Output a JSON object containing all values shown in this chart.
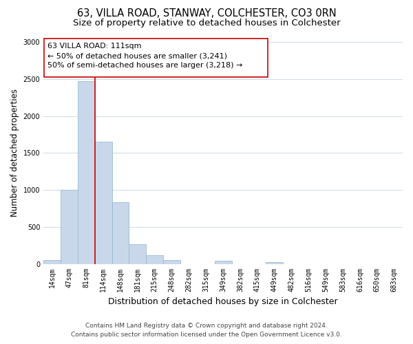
{
  "title1": "63, VILLA ROAD, STANWAY, COLCHESTER, CO3 0RN",
  "title2": "Size of property relative to detached houses in Colchester",
  "xlabel": "Distribution of detached houses by size in Colchester",
  "ylabel": "Number of detached properties",
  "bar_labels": [
    "14sqm",
    "47sqm",
    "81sqm",
    "114sqm",
    "148sqm",
    "181sqm",
    "215sqm",
    "248sqm",
    "282sqm",
    "315sqm",
    "349sqm",
    "382sqm",
    "415sqm",
    "449sqm",
    "482sqm",
    "516sqm",
    "549sqm",
    "583sqm",
    "616sqm",
    "650sqm",
    "683sqm"
  ],
  "bar_values": [
    55,
    1000,
    2470,
    1650,
    830,
    270,
    120,
    55,
    0,
    0,
    40,
    0,
    0,
    20,
    0,
    0,
    0,
    0,
    0,
    0,
    0
  ],
  "bar_color": "#c8d8ea",
  "bar_edge_color": "#9ab8d0",
  "vline_x_index": 2,
  "vline_color": "#cc0000",
  "vline_linewidth": 1.2,
  "annotation_line1": "63 VILLA ROAD: 111sqm",
  "annotation_line2": "← 50% of detached houses are smaller (3,241)",
  "annotation_line3": "50% of semi-detached houses are larger (3,218) →",
  "ylim": [
    0,
    3000
  ],
  "yticks": [
    0,
    500,
    1000,
    1500,
    2000,
    2500,
    3000
  ],
  "footer_line1": "Contains HM Land Registry data © Crown copyright and database right 2024.",
  "footer_line2": "Contains public sector information licensed under the Open Government Licence v3.0.",
  "bg_color": "#ffffff",
  "grid_color": "#d0dce8",
  "title1_fontsize": 10.5,
  "title2_fontsize": 9.5,
  "xlabel_fontsize": 9,
  "ylabel_fontsize": 8.5,
  "tick_fontsize": 7,
  "annotation_fontsize": 8,
  "footer_fontsize": 6.5
}
